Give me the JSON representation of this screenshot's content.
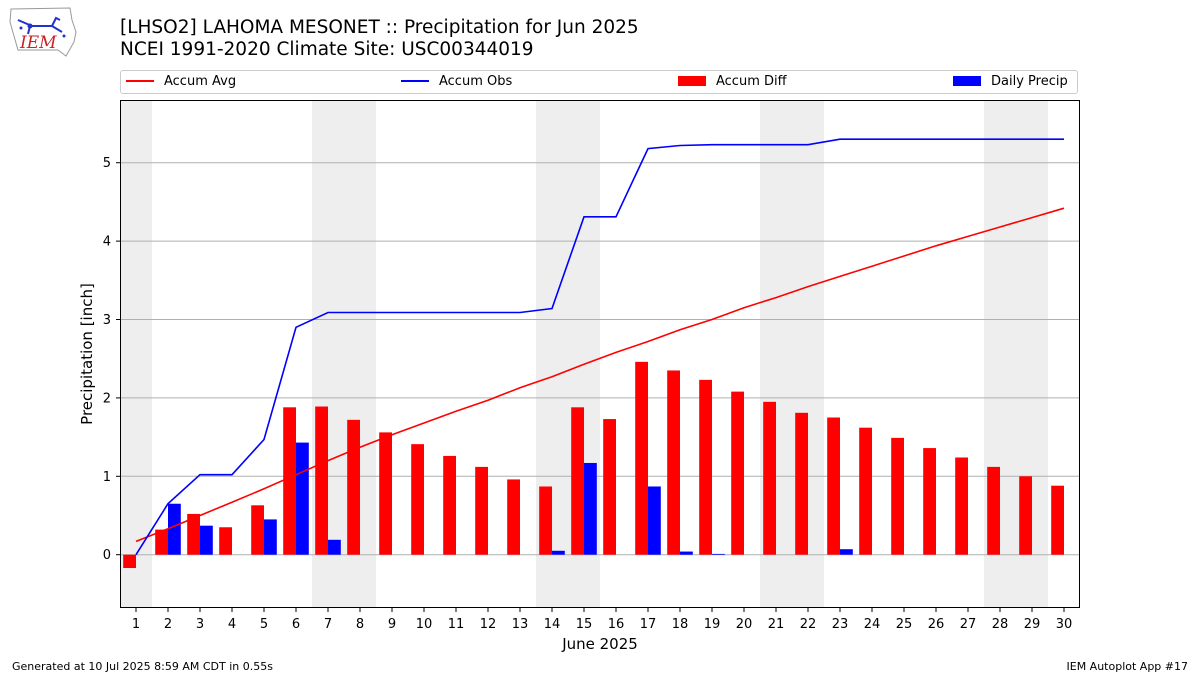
{
  "header": {
    "title_line1": "[LHSO2] LAHOMA MESONET :: Precipitation for Jun 2025",
    "title_line2": "NCEI 1991-2020 Climate Site: USC00344019",
    "logo_text": "IEM"
  },
  "footer": {
    "generated": "Generated at 10 Jul 2025 8:59 AM CDT in 0.55s",
    "app": "IEM Autoplot App #17"
  },
  "colors": {
    "accum_avg": "#ff0000",
    "accum_obs": "#0000ff",
    "accum_diff": "#ff0000",
    "daily_precip": "#0000ff",
    "weekend_band": "#eeeeee",
    "grid": "#b0b0b0"
  },
  "chart_data": {
    "type": "bar",
    "xlabel": "June 2025",
    "ylabel": "Precipitation [inch]",
    "xlim": [
      0.5,
      30.5
    ],
    "ylim": [
      -0.68,
      5.8
    ],
    "yticks": [
      0,
      1,
      2,
      3,
      4,
      5
    ],
    "grid": true,
    "legend": {
      "placement": "top",
      "entries": [
        "Accum Avg",
        "Accum Obs",
        "Accum Diff",
        "Daily Precip"
      ]
    },
    "weekend_days": [
      1,
      7,
      8,
      14,
      15,
      21,
      22,
      28,
      29
    ],
    "days": [
      1,
      2,
      3,
      4,
      5,
      6,
      7,
      8,
      9,
      10,
      11,
      12,
      13,
      14,
      15,
      16,
      17,
      18,
      19,
      20,
      21,
      22,
      23,
      24,
      25,
      26,
      27,
      28,
      29,
      30
    ],
    "series": [
      {
        "name": "Accum Avg",
        "type": "line",
        "values": [
          0.17,
          0.33,
          0.5,
          0.67,
          0.84,
          1.02,
          1.2,
          1.37,
          1.53,
          1.68,
          1.83,
          1.97,
          2.13,
          2.27,
          2.43,
          2.58,
          2.72,
          2.87,
          3.0,
          3.15,
          3.28,
          3.42,
          3.55,
          3.68,
          3.81,
          3.94,
          4.06,
          4.18,
          4.3,
          4.42
        ]
      },
      {
        "name": "Accum Obs",
        "type": "line",
        "values": [
          0.0,
          0.65,
          1.02,
          1.02,
          1.47,
          2.9,
          3.09,
          3.09,
          3.09,
          3.09,
          3.09,
          3.09,
          3.09,
          3.14,
          4.31,
          4.31,
          5.18,
          5.22,
          5.23,
          5.23,
          5.23,
          5.23,
          5.3,
          5.3,
          5.3,
          5.3,
          5.3,
          5.3,
          5.3,
          5.3
        ]
      },
      {
        "name": "Accum Diff",
        "type": "bar",
        "values": [
          -0.17,
          0.32,
          0.52,
          0.35,
          0.63,
          1.88,
          1.89,
          1.72,
          1.56,
          1.41,
          1.26,
          1.12,
          0.96,
          0.87,
          1.88,
          1.73,
          2.46,
          2.35,
          2.23,
          2.08,
          1.95,
          1.81,
          1.75,
          1.62,
          1.49,
          1.36,
          1.24,
          1.12,
          1.0,
          0.88
        ]
      },
      {
        "name": "Daily Precip",
        "type": "bar",
        "values": [
          0,
          0.65,
          0.37,
          0,
          0.45,
          1.43,
          0.19,
          0,
          0,
          0,
          0,
          0,
          0,
          0.05,
          1.17,
          0,
          0.87,
          0.04,
          0.01,
          0,
          0,
          0,
          0.07,
          0,
          0,
          0,
          0,
          0,
          0,
          0
        ]
      }
    ]
  }
}
